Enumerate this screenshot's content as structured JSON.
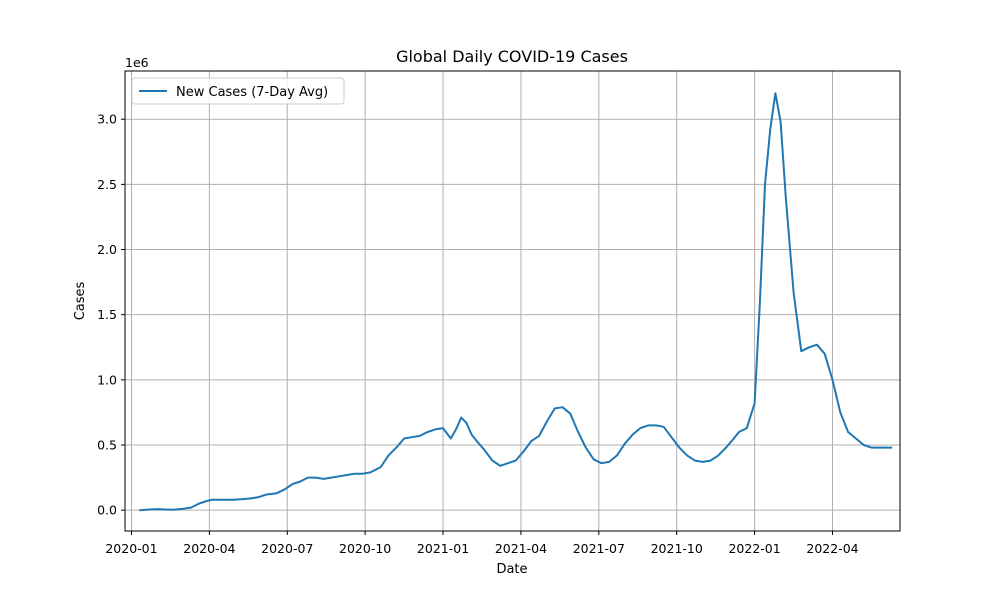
{
  "chart_data": {
    "type": "line",
    "title": "Global Daily COVID-19 Cases",
    "xlabel": "Date",
    "ylabel": "Cases",
    "y_scale_label": "1e6",
    "x_ticks": [
      "2020-01",
      "2020-04",
      "2020-07",
      "2020-10",
      "2021-01",
      "2021-04",
      "2021-07",
      "2021-10",
      "2022-01",
      "2022-04"
    ],
    "y_ticks": [
      "0.0",
      "0.5",
      "1.0",
      "1.5",
      "2.0",
      "2.5",
      "3.0"
    ],
    "y_tick_values": [
      0,
      0.5,
      1.0,
      1.5,
      2.0,
      2.5,
      3.0
    ],
    "xlim_months": [
      -0.25,
      29.6
    ],
    "ylim": [
      -0.16,
      3.37
    ],
    "grid": true,
    "legend_position": "upper left",
    "series": [
      {
        "name": "New Cases (7-Day Avg)",
        "color": "#1f77b4",
        "x_months": [
          0.3,
          0.7,
          1.0,
          1.3,
          1.6,
          2.0,
          2.3,
          2.6,
          2.9,
          3.1,
          3.3,
          3.6,
          3.9,
          4.3,
          4.6,
          4.9,
          5.2,
          5.6,
          5.9,
          6.2,
          6.5,
          6.8,
          7.1,
          7.4,
          7.7,
          8.0,
          8.3,
          8.6,
          8.9,
          9.2,
          9.6,
          9.9,
          10.2,
          10.5,
          10.8,
          11.1,
          11.4,
          11.7,
          12.0,
          12.3,
          12.5,
          12.7,
          12.9,
          13.1,
          13.3,
          13.6,
          13.9,
          14.2,
          14.5,
          14.8,
          15.1,
          15.4,
          15.7,
          16.0,
          16.3,
          16.6,
          16.9,
          17.2,
          17.5,
          17.8,
          18.1,
          18.4,
          18.7,
          19.0,
          19.3,
          19.6,
          19.9,
          20.2,
          20.5,
          20.8,
          21.1,
          21.4,
          21.7,
          22.0,
          22.3,
          22.6,
          22.9,
          23.2,
          23.4,
          23.7,
          24.0,
          24.2,
          24.4,
          24.6,
          24.8,
          25.0,
          25.2,
          25.5,
          25.8,
          26.1,
          26.4,
          26.7,
          27.0,
          27.3,
          27.6,
          27.9,
          28.2,
          28.5,
          28.8,
          29.1,
          29.3
        ],
        "values": [
          0.0,
          0.005,
          0.008,
          0.005,
          0.003,
          0.01,
          0.02,
          0.05,
          0.07,
          0.08,
          0.08,
          0.08,
          0.08,
          0.085,
          0.09,
          0.1,
          0.12,
          0.13,
          0.16,
          0.2,
          0.22,
          0.25,
          0.25,
          0.24,
          0.25,
          0.26,
          0.27,
          0.28,
          0.28,
          0.29,
          0.33,
          0.42,
          0.48,
          0.55,
          0.56,
          0.57,
          0.6,
          0.62,
          0.63,
          0.55,
          0.62,
          0.71,
          0.67,
          0.58,
          0.53,
          0.46,
          0.38,
          0.34,
          0.36,
          0.38,
          0.45,
          0.53,
          0.57,
          0.68,
          0.78,
          0.79,
          0.74,
          0.6,
          0.48,
          0.39,
          0.36,
          0.37,
          0.42,
          0.51,
          0.58,
          0.63,
          0.65,
          0.65,
          0.64,
          0.56,
          0.48,
          0.42,
          0.38,
          0.37,
          0.38,
          0.42,
          0.48,
          0.55,
          0.6,
          0.63,
          0.82,
          1.58,
          2.5,
          2.92,
          3.2,
          2.98,
          2.4,
          1.67,
          1.22,
          1.25,
          1.27,
          1.2,
          1.0,
          0.75,
          0.6,
          0.55,
          0.5,
          0.48,
          0.48,
          0.48,
          0.48
        ]
      }
    ]
  }
}
